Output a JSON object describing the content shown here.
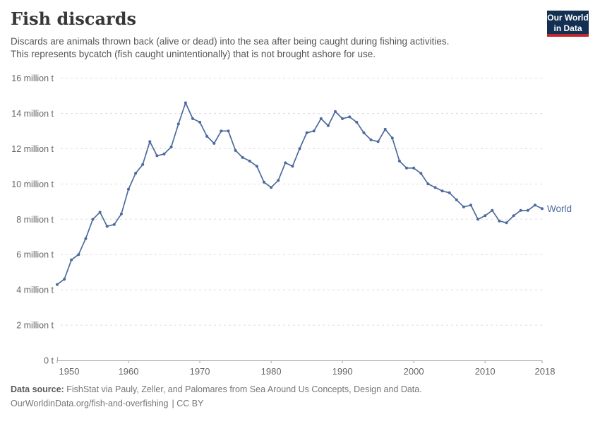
{
  "header": {
    "title": "Fish discards",
    "subtitle_line1": "Discards are animals thrown back (alive or dead) into the sea after being caught during fishing activities.",
    "subtitle_line2": "This represents bycatch (fish caught unintentionally) that is not brought ashore for use.",
    "logo_line1": "Our World",
    "logo_line2": "in Data"
  },
  "chart_data": {
    "type": "line",
    "title": "Fish discards",
    "unit": "million t",
    "xlabel": "",
    "ylabel": "",
    "xlim": [
      1950,
      2018
    ],
    "ylim": [
      0,
      16
    ],
    "grid": "horizontal-dashed",
    "legend_position": "end-of-line",
    "x_ticks": [
      1950,
      1960,
      1970,
      1980,
      1990,
      2000,
      2010,
      2018
    ],
    "y_ticks": [
      {
        "value": 0,
        "label": "0 t"
      },
      {
        "value": 2,
        "label": "2 million t"
      },
      {
        "value": 4,
        "label": "4 million t"
      },
      {
        "value": 6,
        "label": "6 million t"
      },
      {
        "value": 8,
        "label": "8 million t"
      },
      {
        "value": 10,
        "label": "10 million t"
      },
      {
        "value": 12,
        "label": "12 million t"
      },
      {
        "value": 14,
        "label": "14 million t"
      },
      {
        "value": 16,
        "label": "16 million t"
      }
    ],
    "x": [
      1950,
      1951,
      1952,
      1953,
      1954,
      1955,
      1956,
      1957,
      1958,
      1959,
      1960,
      1961,
      1962,
      1963,
      1964,
      1965,
      1966,
      1967,
      1968,
      1969,
      1970,
      1971,
      1972,
      1973,
      1974,
      1975,
      1976,
      1977,
      1978,
      1979,
      1980,
      1981,
      1982,
      1983,
      1984,
      1985,
      1986,
      1987,
      1988,
      1989,
      1990,
      1991,
      1992,
      1993,
      1994,
      1995,
      1996,
      1997,
      1998,
      1999,
      2000,
      2001,
      2002,
      2003,
      2004,
      2005,
      2006,
      2007,
      2008,
      2009,
      2010,
      2011,
      2012,
      2013,
      2014,
      2015,
      2016,
      2017,
      2018
    ],
    "series": [
      {
        "name": "World",
        "color": "#4c6a9c",
        "values": [
          4.3,
          4.6,
          5.7,
          6.0,
          6.9,
          8.0,
          8.4,
          7.6,
          7.7,
          8.3,
          9.7,
          10.6,
          11.1,
          12.4,
          11.6,
          11.7,
          12.1,
          13.4,
          14.6,
          13.7,
          13.5,
          12.7,
          12.3,
          13.0,
          13.0,
          11.9,
          11.5,
          11.3,
          11.0,
          10.1,
          9.8,
          10.2,
          11.2,
          11.0,
          12.0,
          12.9,
          13.0,
          13.7,
          13.3,
          14.1,
          13.7,
          13.8,
          13.5,
          12.9,
          12.5,
          12.4,
          13.1,
          12.6,
          11.3,
          10.9,
          10.9,
          10.6,
          10.0,
          9.8,
          9.6,
          9.5,
          9.1,
          8.7,
          8.8,
          8.0,
          8.2,
          8.5,
          7.9,
          7.8,
          8.2,
          8.5,
          8.5,
          8.8,
          8.6
        ]
      }
    ]
  },
  "footer": {
    "source_label": "Data source:",
    "source_text": " FishStat via Pauly, Zeller, and Palomares from Sea Around Us Concepts, Design and Data.",
    "link": "OurWorldinData.org/fish-and-overfishing",
    "license": "| CC BY"
  },
  "colors": {
    "line": "#4c6a9c",
    "logo_bg": "#132f52",
    "logo_bar": "#c1272d",
    "grid": "#dddddd",
    "axis": "#a3a3a3",
    "tick_text": "#666666"
  }
}
